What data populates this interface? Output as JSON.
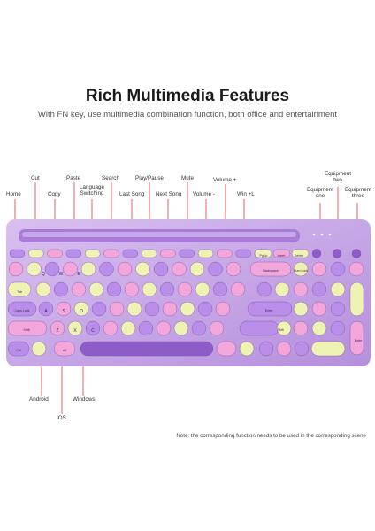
{
  "header": {
    "title": "Rich Multimedia Features",
    "subtitle": "With FN key, use multimedia combination function, both office and entertainment"
  },
  "callouts": {
    "home": "Home",
    "cut": "Cut",
    "copy": "Copy",
    "paste": "Paste",
    "language_switching": "Language Switching",
    "search": "Search",
    "last_song": "Last Song",
    "play_pause": "Play/Pause",
    "next_song": "Next Song",
    "mute": "Mute",
    "volume_minus": "Volume -",
    "volume_plus": "Volume +",
    "win_l": "Win +L",
    "equipment_one": "Equipment one",
    "equipment_two": "Equipment two",
    "equipment_three": "Equipment three",
    "android": "Android",
    "ios": "IOS",
    "windows": "Windows"
  },
  "keys": {
    "backspace": "Backspace",
    "tab": "Tab",
    "caps_lock": "Caps Lock",
    "enter": "Enter",
    "shift_left": "Shift",
    "shift_right": "Shift",
    "ctrl": "Ctrl",
    "alt": "Alt",
    "pgup": "PgUp",
    "insert": "Insert",
    "delete": "Delete",
    "num_lock": "Num Lock",
    "numpad_enter": "Enter",
    "q": "Q",
    "w": "W",
    "e": "E",
    "a": "A",
    "s": "S",
    "d": "D",
    "z": "Z",
    "x": "X",
    "c": "C"
  },
  "note": "Note: the corresponding function needs to be used in the corresponding scene",
  "colors": {
    "body": "#c7a9e4",
    "tray": "#b88fde",
    "key_purple": "#b88ee8",
    "key_pink": "#f2a6d9",
    "key_yellow": "#eef3b4",
    "key_dark": "#8e5cc7"
  }
}
